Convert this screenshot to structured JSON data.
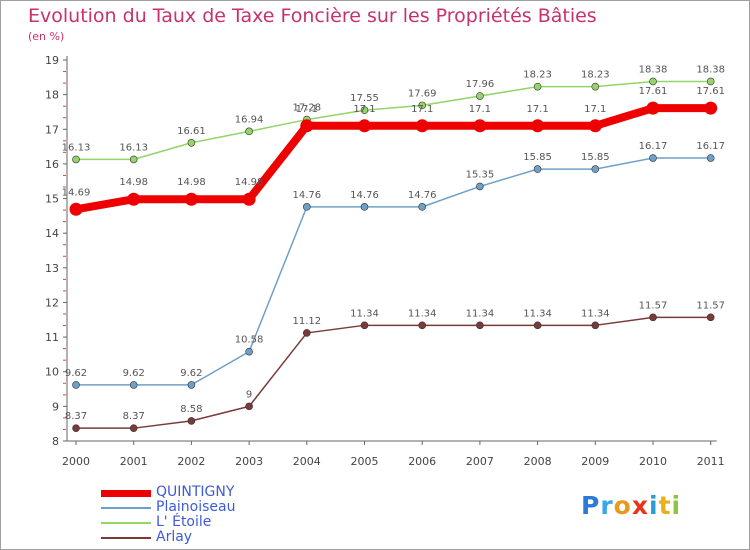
{
  "title": "Evolution du Taux de Taxe Foncière sur les Propriétés Bâties",
  "unit": "(en %)",
  "brand": {
    "text": "Proxiti",
    "letter_colors": [
      "#2b7bd8",
      "#3aa6e8",
      "#e89a1c",
      "#e8351c",
      "#2b9bd8",
      "#e8b01c",
      "#8cc63f"
    ]
  },
  "chart_data": {
    "type": "line",
    "title": "Evolution du Taux de Taxe Foncière sur les Propriétés Bâties",
    "ylabel": "(en %)",
    "xlabel": "",
    "x": [
      "2000",
      "2001",
      "2002",
      "2003",
      "2004",
      "2005",
      "2006",
      "2007",
      "2008",
      "2009",
      "2010",
      "2011"
    ],
    "ylim": [
      8,
      19
    ],
    "yticks": [
      "8",
      "9",
      "10",
      "11",
      "12",
      "13",
      "14",
      "15",
      "16",
      "17",
      "18",
      "19"
    ],
    "grid": false,
    "legend_position": "bottom-left",
    "series": [
      {
        "name": "QUINTIGNY",
        "color": "#ee0000",
        "emphasis": true,
        "values": [
          14.69,
          14.98,
          14.98,
          14.98,
          17.1,
          17.1,
          17.1,
          17.1,
          17.1,
          17.1,
          17.61,
          17.61
        ],
        "labels": [
          "14.69",
          "14.98",
          "14.98",
          "14.98",
          "17.1",
          "17.1",
          "17.1",
          "17.1",
          "17.1",
          "17.1",
          "17.61",
          "17.61"
        ]
      },
      {
        "name": "Plainoiseau",
        "color": "#6fa0c8",
        "emphasis": false,
        "values": [
          9.62,
          9.62,
          9.62,
          10.58,
          14.76,
          14.76,
          14.76,
          15.35,
          15.85,
          15.85,
          16.17,
          16.17
        ],
        "labels": [
          "9.62",
          "9.62",
          "9.62",
          "10.58",
          "14.76",
          "14.76",
          "14.76",
          "15.35",
          "15.85",
          "15.85",
          "16.17",
          "16.17"
        ]
      },
      {
        "name": "L' Étoile",
        "color": "#94d468",
        "emphasis": false,
        "values": [
          16.13,
          16.13,
          16.61,
          16.94,
          17.28,
          17.55,
          17.69,
          17.96,
          18.23,
          18.23,
          18.38,
          18.38
        ],
        "labels": [
          "16.13",
          "16.13",
          "16.61",
          "16.94",
          "17.28",
          "17.55",
          "17.69",
          "17.96",
          "18.23",
          "18.23",
          "18.38",
          "18.38"
        ]
      },
      {
        "name": "Arlay",
        "color": "#7a3a3a",
        "emphasis": false,
        "values": [
          8.37,
          8.37,
          8.58,
          9,
          11.12,
          11.34,
          11.34,
          11.34,
          11.34,
          11.34,
          11.57,
          11.57
        ],
        "labels": [
          "8.37",
          "8.37",
          "8.58",
          "9",
          "11.12",
          "11.34",
          "11.34",
          "11.34",
          "11.34",
          "11.34",
          "11.57",
          "11.57"
        ]
      }
    ]
  }
}
